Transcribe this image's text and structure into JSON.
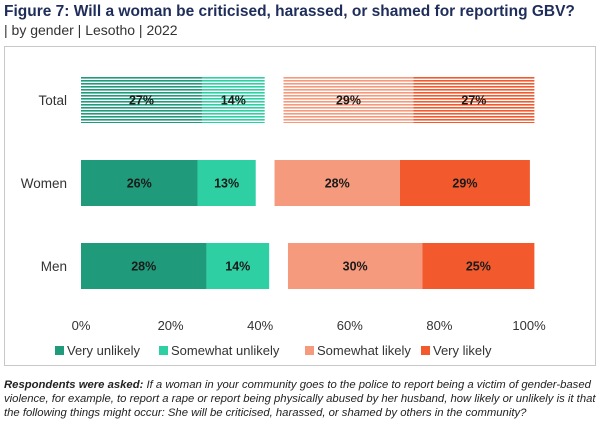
{
  "title": "Figure 7: Will a woman be criticised, harassed, or shamed for reporting GBV?",
  "subtitle": "| by gender | Lesotho | 2022",
  "note": {
    "lead": "Respondents were asked:",
    "text": " If a woman in your community goes to the police to report being a victim of gender-based violence, for example, to report a rape or report being physically abused by her husband, how likely or unlikely is it that the following things might occur: She will be criticised, harassed, or shamed by others in the community?"
  },
  "colors": {
    "very_unlikely": "#1f9a7a",
    "somewhat_unlikely": "#2ecfa2",
    "somewhat_likely": "#f59a7c",
    "very_likely": "#f25a2e"
  },
  "chart_data": {
    "type": "bar",
    "orientation": "horizontal",
    "stacked": "diverging-with-gap",
    "categories": [
      "Total",
      "Women",
      "Men"
    ],
    "series": [
      {
        "name": "Very unlikely",
        "key": "very_unlikely",
        "values": [
          27,
          26,
          28
        ]
      },
      {
        "name": "Somewhat unlikely",
        "key": "somewhat_unlikely",
        "values": [
          14,
          13,
          14
        ]
      },
      {
        "name": "Somewhat likely",
        "key": "somewhat_likely",
        "values": [
          29,
          28,
          30
        ]
      },
      {
        "name": "Very likely",
        "key": "very_likely",
        "values": [
          27,
          29,
          25
        ]
      }
    ],
    "highlight_pattern_rows": [
      "Total"
    ],
    "xlim": [
      0,
      100
    ],
    "xticks": [
      "0%",
      "20%",
      "40%",
      "60%",
      "80%",
      "100%"
    ],
    "xtick_values": [
      0,
      20,
      40,
      60,
      80,
      100
    ],
    "legend_position": "bottom",
    "grid": false
  }
}
